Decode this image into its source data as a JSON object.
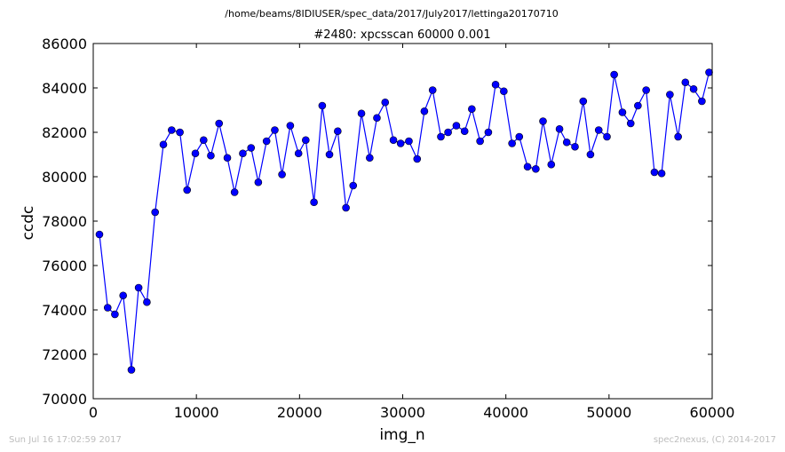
{
  "header": {
    "path": "/home/beams/8IDIUSER/spec_data/2017/July2017/lettinga20170710"
  },
  "footer": {
    "timestamp": "Sun Jul 16 17:02:59 2017",
    "credit": "spec2nexus, (C) 2014-2017"
  },
  "chart_data": {
    "type": "line",
    "title": "#2480: xpcsscan 60000 0.001",
    "xlabel": "img_n",
    "ylabel": "ccdc",
    "xlim": [
      0,
      60000
    ],
    "ylim": [
      70000,
      86000
    ],
    "xticks": [
      0,
      10000,
      20000,
      30000,
      40000,
      50000,
      60000
    ],
    "yticks": [
      70000,
      72000,
      74000,
      76000,
      78000,
      80000,
      82000,
      84000,
      86000
    ],
    "grid": false,
    "legend": "none",
    "line_color": "#0000ff",
    "marker": "circle",
    "series": [
      {
        "x": [
          600,
          1400,
          2100,
          2900,
          3700,
          4400,
          5200,
          6000,
          6800,
          7600,
          8400,
          9100,
          9900,
          10700,
          11400,
          12200,
          13000,
          13700,
          14500,
          15300,
          16000,
          16800,
          17600,
          18300,
          19100,
          19900,
          20600,
          21400,
          22200,
          22900,
          23700,
          24500,
          25200,
          26000,
          26800,
          27500,
          28300,
          29100,
          29800,
          30600,
          31400,
          32100,
          32900,
          33700,
          34400,
          35200,
          36000,
          36700,
          37500,
          38300,
          39000,
          39800,
          40600,
          41300,
          42100,
          42900,
          43600,
          44400,
          45200,
          45900,
          46700,
          47500,
          48200,
          49000,
          49800,
          50500,
          51300,
          52100,
          52800,
          53600,
          54400,
          55100,
          55900,
          56700,
          57400,
          58200,
          59000,
          59700
        ],
        "y": [
          77400,
          74100,
          73800,
          74650,
          71300,
          75000,
          74350,
          78400,
          81450,
          82100,
          82000,
          79400,
          81050,
          81650,
          80950,
          82400,
          80850,
          79300,
          81050,
          81300,
          79750,
          81600,
          82100,
          80100,
          82300,
          81050,
          81650,
          78850,
          83200,
          81000,
          82050,
          78600,
          79600,
          82850,
          80850,
          82650,
          83350,
          81650,
          81500,
          81600,
          80800,
          82950,
          83900,
          81800,
          82000,
          82300,
          82050,
          83050,
          81600,
          82000,
          84150,
          83850,
          81500,
          81800,
          80450,
          80350,
          82500,
          80550,
          82150,
          81550,
          81350,
          83400,
          81000,
          82100,
          81800,
          84600,
          82900,
          82400,
          83200,
          83900,
          80200,
          80150,
          83700,
          81800,
          84250,
          83950,
          83400,
          84700
        ]
      }
    ]
  }
}
